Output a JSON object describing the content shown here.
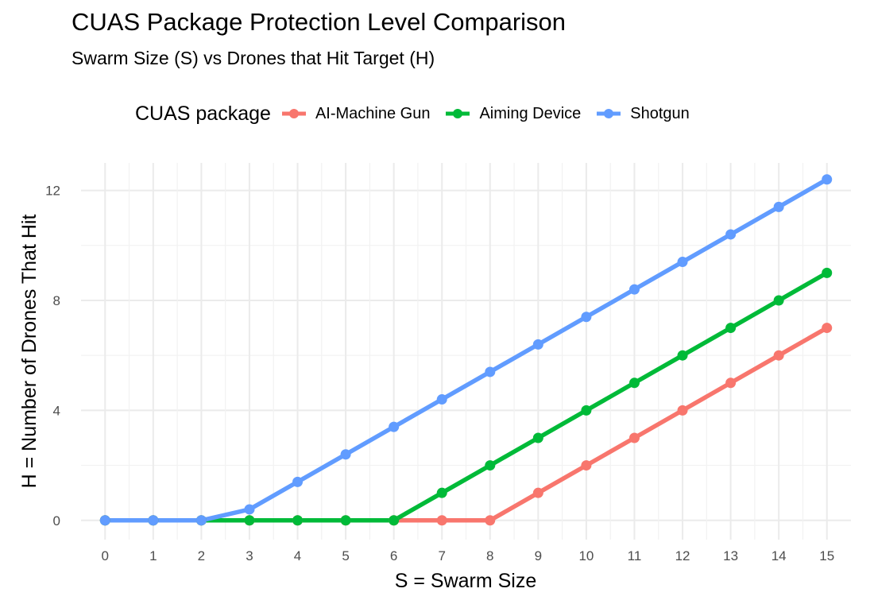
{
  "chart_data": {
    "type": "line",
    "title": "CUAS Package Protection Level Comparison",
    "subtitle": "Swarm Size (S) vs Drones that Hit Target (H)",
    "xlabel": "S = Swarm Size",
    "ylabel": "H = Number of Drones That Hit",
    "legend_title": "CUAS package",
    "legend_position": "top",
    "grid": true,
    "x": [
      0,
      1,
      2,
      3,
      4,
      5,
      6,
      7,
      8,
      9,
      10,
      11,
      12,
      13,
      14,
      15
    ],
    "x_tick_labels": [
      "0",
      "1",
      "2",
      "3",
      "4",
      "5",
      "6",
      "7",
      "8",
      "9",
      "10",
      "11",
      "12",
      "13",
      "14",
      "15"
    ],
    "xlim": [
      -0.5,
      15.5
    ],
    "ylim": [
      -0.7,
      13.0
    ],
    "y_ticks": [
      0,
      4,
      8,
      12
    ],
    "y_tick_labels": [
      "0",
      "4",
      "8",
      "12"
    ],
    "series": [
      {
        "name": "AI-Machine Gun",
        "color": "#F8766D",
        "values": [
          0,
          0,
          0,
          0,
          0,
          0,
          0,
          0,
          0,
          1,
          2,
          3,
          4,
          5,
          6,
          7
        ]
      },
      {
        "name": "Aiming Device",
        "color": "#00BA38",
        "values": [
          0,
          0,
          0,
          0,
          0,
          0,
          0,
          1,
          2,
          3,
          4,
          5,
          6,
          7,
          8,
          9
        ]
      },
      {
        "name": "Shotgun",
        "color": "#619CFF",
        "values": [
          0,
          0,
          0,
          0.4,
          1.4,
          2.4,
          3.4,
          4.4,
          5.4,
          6.4,
          7.4,
          8.4,
          9.4,
          10.4,
          11.4,
          12.4
        ]
      }
    ]
  }
}
